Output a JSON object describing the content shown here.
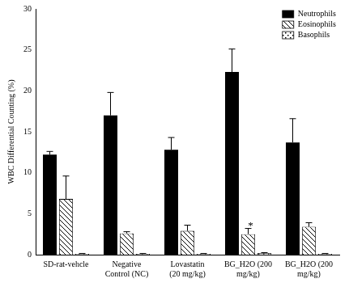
{
  "chart_data": {
    "type": "bar",
    "y_label": "WBC Differential Counting (%)",
    "categories": [
      "SD-rat-vehcle",
      "Negative Control (NC)",
      "Lovastatin (20 mg/kg)",
      "BG_H2O (200 mg/kg)",
      "BG_H2O (200 mg/kg)"
    ],
    "series": [
      {
        "name": "Neutrophils",
        "color": "#000000",
        "values": [
          12.2,
          17.0,
          12.8,
          22.3,
          13.7
        ],
        "errors": [
          0.4,
          2.8,
          1.5,
          2.8,
          2.9
        ]
      },
      {
        "name": "Eosinophils",
        "color": "#000000",
        "values": [
          6.8,
          2.6,
          2.9,
          2.5,
          3.4
        ],
        "errors": [
          2.8,
          0.2,
          0.7,
          0.7,
          0.5
        ]
      },
      {
        "name": "Basophils",
        "color": "#000000",
        "values": [
          0.1,
          0.1,
          0.1,
          0.2,
          0.1
        ],
        "errors": [
          0.05,
          0.05,
          0.05,
          0.05,
          0.05
        ]
      }
    ],
    "annotations": [
      {
        "text": "*",
        "category": "BG_H2O (200 mg/kg)",
        "series": "Eosinophils"
      }
    ],
    "ylim": [
      0,
      30
    ],
    "yticks": [
      0,
      5,
      10,
      15,
      20,
      25,
      30
    ],
    "grid": false,
    "legend": "upper right"
  }
}
